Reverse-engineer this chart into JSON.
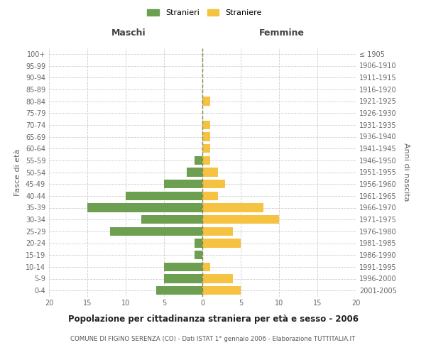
{
  "age_groups": [
    "0-4",
    "5-9",
    "10-14",
    "15-19",
    "20-24",
    "25-29",
    "30-34",
    "35-39",
    "40-44",
    "45-49",
    "50-54",
    "55-59",
    "60-64",
    "65-69",
    "70-74",
    "75-79",
    "80-84",
    "85-89",
    "90-94",
    "95-99",
    "100+"
  ],
  "birth_years": [
    "2001-2005",
    "1996-2000",
    "1991-1995",
    "1986-1990",
    "1981-1985",
    "1976-1980",
    "1971-1975",
    "1966-1970",
    "1961-1965",
    "1956-1960",
    "1951-1955",
    "1946-1950",
    "1941-1945",
    "1936-1940",
    "1931-1935",
    "1926-1930",
    "1921-1925",
    "1916-1920",
    "1911-1915",
    "1906-1910",
    "≤ 1905"
  ],
  "maschi": [
    6,
    5,
    5,
    1,
    1,
    12,
    8,
    15,
    10,
    5,
    2,
    1,
    0,
    0,
    0,
    0,
    0,
    0,
    0,
    0,
    0
  ],
  "femmine": [
    5,
    4,
    1,
    0,
    5,
    4,
    10,
    8,
    2,
    3,
    2,
    1,
    1,
    1,
    1,
    0,
    1,
    0,
    0,
    0,
    0
  ],
  "maschi_color": "#6d9f51",
  "femmine_color": "#f5c242",
  "title": "Popolazione per cittadinanza straniera per età e sesso - 2006",
  "subtitle": "COMUNE DI FIGINO SERENZA (CO) - Dati ISTAT 1° gennaio 2006 - Elaborazione TUTTITALIA.IT",
  "ylabel_left": "Fasce di età",
  "ylabel_right": "Anni di nascita",
  "xlabel_left": "Maschi",
  "xlabel_right": "Femmine",
  "legend_maschi": "Stranieri",
  "legend_femmine": "Straniere",
  "xlim": 20,
  "background_color": "#ffffff",
  "grid_color": "#cccccc"
}
